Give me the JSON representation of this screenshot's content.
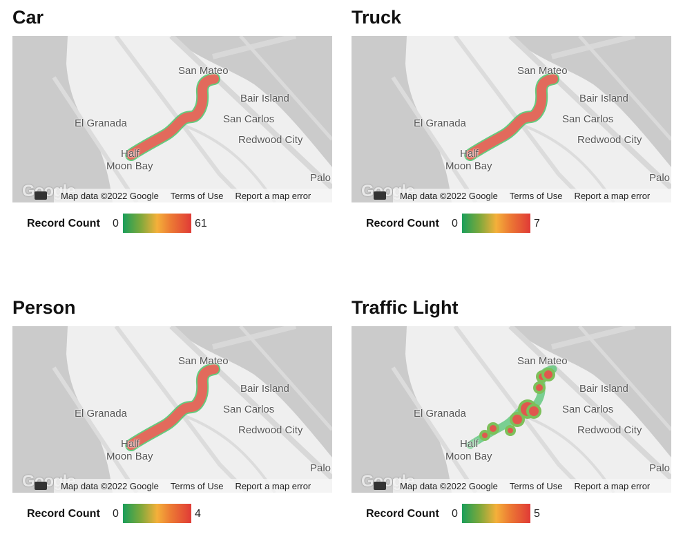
{
  "panels": [
    {
      "title": "Car",
      "legend_label": "Record Count",
      "min": "0",
      "max": "61",
      "style": "line"
    },
    {
      "title": "Truck",
      "legend_label": "Record Count",
      "min": "0",
      "max": "7",
      "style": "line"
    },
    {
      "title": "Person",
      "legend_label": "Record Count",
      "min": "0",
      "max": "4",
      "style": "line"
    },
    {
      "title": "Traffic Light",
      "legend_label": "Record Count",
      "min": "0",
      "max": "5",
      "style": "spots"
    }
  ],
  "map": {
    "places": [
      "San Mateo",
      "Bair Island",
      "San Carlos",
      "El Granada",
      "Redwood City",
      "Half",
      "Moon Bay",
      "Palo"
    ],
    "logo": "Google",
    "attribution": "Map data ©2022 Google",
    "terms": "Terms of Use",
    "report": "Report a map error"
  },
  "colors": {
    "low": "#1a9e5a",
    "mid": "#f4b03a",
    "high": "#e03b36"
  }
}
